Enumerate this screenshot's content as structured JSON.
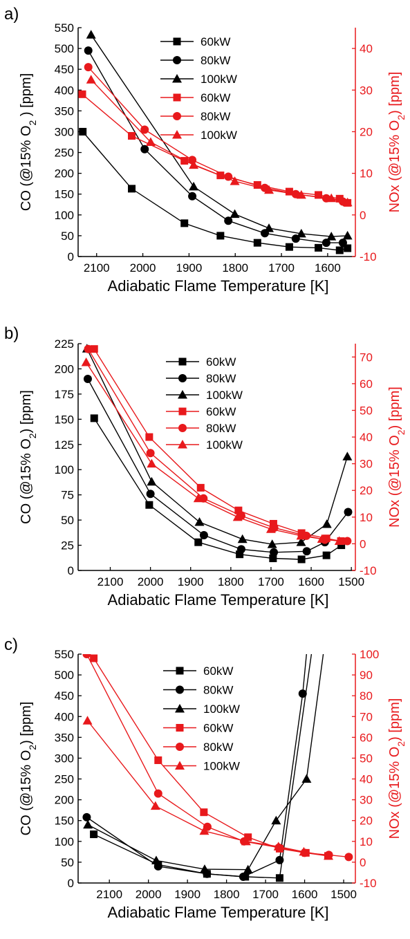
{
  "chart_data": [
    {
      "type": "line",
      "panel_label": "a)",
      "xlabel": "Adiabatic Flame Temperature [K]",
      "ylabel": "CO (@15% O2 ) [ppm]",
      "ylabel_right": "NOx (@15% O2) [ppm]",
      "xlim": [
        2140,
        1540
      ],
      "xticks": [
        2100,
        2000,
        1900,
        1800,
        1700,
        1600
      ],
      "ylim": [
        0,
        550
      ],
      "yticks": [
        0,
        50,
        100,
        150,
        200,
        250,
        300,
        350,
        400,
        450,
        500,
        550
      ],
      "ylim_right": [
        -10,
        45
      ],
      "yticks_right": [
        -10,
        0,
        10,
        20,
        30,
        40
      ],
      "legend_position": "top-center",
      "colors": {
        "co": "#000000",
        "nox": "#e8191c"
      },
      "series": [
        {
          "name": "60kW",
          "axis": "left",
          "marker": "square",
          "x": [
            2130,
            2024,
            1910,
            1832,
            1752,
            1683,
            1620,
            1574,
            1557
          ],
          "y": [
            300,
            163,
            80,
            50,
            33,
            23,
            21,
            15,
            20
          ]
        },
        {
          "name": "80kW",
          "axis": "left",
          "marker": "circle",
          "x": [
            2118,
            1996,
            1893,
            1815,
            1736,
            1669,
            1603,
            1567
          ],
          "y": [
            495,
            258,
            145,
            86,
            56,
            43,
            33,
            33
          ]
        },
        {
          "name": "100kW",
          "axis": "left",
          "marker": "triangle",
          "x": [
            2112,
            1890,
            1801,
            1727,
            1657,
            1592,
            1557
          ],
          "y": [
            533,
            168,
            102,
            68,
            55,
            48,
            50
          ]
        },
        {
          "name": "60kW",
          "axis": "right",
          "marker": "square",
          "x": [
            2131,
            2024,
            1910,
            1832,
            1752,
            1683,
            1620,
            1574,
            1557
          ],
          "y": [
            29,
            19,
            13,
            9.5,
            7.2,
            5.6,
            4.8,
            3.9,
            2.9
          ]
        },
        {
          "name": "80kW",
          "axis": "right",
          "marker": "circle",
          "x": [
            2118,
            1996,
            1893,
            1815,
            1736,
            1669,
            1603,
            1567
          ],
          "y": [
            35.5,
            20.5,
            13.2,
            9.2,
            6.5,
            5.0,
            4.0,
            3.2
          ]
        },
        {
          "name": "100kW",
          "axis": "right",
          "marker": "triangle",
          "x": [
            2112,
            1983,
            1890,
            1801,
            1727,
            1657,
            1592,
            1557
          ],
          "y": [
            32.5,
            17.5,
            12.0,
            8.1,
            6.0,
            4.8,
            4.0,
            3.0
          ]
        }
      ]
    },
    {
      "type": "line",
      "panel_label": "b)",
      "xlabel": "Adiabatic Flame Temperature [K]",
      "ylabel": "CO (@15% O2) [ppm]",
      "ylabel_right": "NOx (@15% O2) [ppm]",
      "xlim": [
        2180,
        1490
      ],
      "xticks": [
        2100,
        2000,
        1900,
        1800,
        1700,
        1600,
        1500
      ],
      "ylim": [
        0,
        225
      ],
      "yticks": [
        0,
        25,
        50,
        75,
        100,
        125,
        150,
        175,
        200,
        225
      ],
      "ylim_right": [
        -10,
        75
      ],
      "yticks_right": [
        -10,
        0,
        10,
        20,
        30,
        40,
        50,
        60,
        70
      ],
      "legend_position": "top-center",
      "colors": {
        "co": "#000000",
        "nox": "#e8191c"
      },
      "series": [
        {
          "name": "60kW",
          "axis": "left",
          "marker": "square",
          "x": [
            2140,
            2003,
            1881,
            1778,
            1695,
            1624,
            1562,
            1525
          ],
          "y": [
            151,
            65,
            28,
            16,
            12,
            11,
            15,
            25
          ]
        },
        {
          "name": "80kW",
          "axis": "left",
          "marker": "circle",
          "x": [
            2156,
            2000,
            1867,
            1774,
            1693,
            1611,
            1566,
            1508
          ],
          "y": [
            190,
            76,
            35,
            21,
            18,
            19,
            28,
            58
          ]
        },
        {
          "name": "100kW",
          "axis": "left",
          "marker": "triangle",
          "x": [
            2158,
            1997,
            1878,
            1771,
            1697,
            1625,
            1561,
            1510
          ],
          "y": [
            220,
            88,
            48,
            31,
            26,
            28,
            46,
            113
          ]
        },
        {
          "name": "60kW",
          "axis": "right",
          "marker": "square",
          "x": [
            2140,
            2003,
            1875,
            1781,
            1694,
            1624,
            1562,
            1526
          ],
          "y": [
            73,
            40,
            21,
            12.5,
            7.5,
            4.0,
            2.0,
            1.0
          ]
        },
        {
          "name": "80kW",
          "axis": "right",
          "marker": "circle",
          "x": [
            2155,
            2000,
            1868,
            1774,
            1692,
            1612,
            1566,
            1510
          ],
          "y": [
            73,
            34,
            17,
            10.5,
            6.0,
            3.0,
            1.5,
            1.0
          ]
        },
        {
          "name": "100kW",
          "axis": "right",
          "marker": "triangle",
          "x": [
            2160,
            1997,
            1881,
            1783,
            1700,
            1625,
            1573,
            1530
          ],
          "y": [
            68,
            30,
            17,
            10.0,
            5.5,
            3.0,
            1.8,
            1.0
          ]
        }
      ]
    },
    {
      "type": "line",
      "panel_label": "c)",
      "xlabel": "Adiabatic Flame Temperature [K]",
      "ylabel": "CO (@15% O2) [ppm]",
      "ylabel_right": "NOx (@15% O2) [ppm]",
      "xlim": [
        2180,
        1470
      ],
      "xticks": [
        2100,
        2000,
        1900,
        1800,
        1700,
        1600,
        1500
      ],
      "ylim": [
        0,
        550
      ],
      "yticks": [
        0,
        50,
        100,
        150,
        200,
        250,
        300,
        350,
        400,
        450,
        500,
        550
      ],
      "ylim_right": [
        -10,
        100
      ],
      "yticks_right": [
        -10,
        0,
        10,
        20,
        30,
        40,
        50,
        60,
        70,
        80,
        90,
        100
      ],
      "legend_position": "top-center",
      "colors": {
        "co": "#000000",
        "nox": "#e8191c"
      },
      "series": [
        {
          "name": "60kW",
          "axis": "left",
          "marker": "square",
          "x": [
            2140,
            1975,
            1850,
            1752,
            1664,
            1575
          ],
          "y": [
            117,
            44,
            22,
            15,
            12,
            600
          ]
        },
        {
          "name": "80kW",
          "axis": "left",
          "marker": "circle",
          "x": [
            2158,
            1975,
            1850,
            1757,
            1664,
            1605,
            1590
          ],
          "y": [
            158,
            40,
            22,
            15,
            55,
            455,
            600
          ]
        },
        {
          "name": "100kW",
          "axis": "left",
          "marker": "triangle",
          "x": [
            2155,
            1980,
            1856,
            1745,
            1673,
            1595,
            1545
          ],
          "y": [
            140,
            54,
            33,
            32,
            150,
            250,
            600
          ]
        },
        {
          "name": "60kW",
          "axis": "right",
          "marker": "square",
          "x": [
            2140,
            1975,
            1858,
            1745,
            1664,
            1597,
            1540
          ],
          "y": [
            98,
            49,
            24,
            12,
            6.5,
            4.5,
            3.0
          ]
        },
        {
          "name": "80kW",
          "axis": "right",
          "marker": "circle",
          "x": [
            2158,
            1975,
            1849,
            1755,
            1666,
            1600,
            1538,
            1487
          ],
          "y": [
            100,
            33,
            17,
            10,
            7,
            4.5,
            3.5,
            2.5
          ]
        },
        {
          "name": "100kW",
          "axis": "right",
          "marker": "triangle",
          "x": [
            2156,
            1982,
            1857,
            1750,
            1667,
            1602,
            1539
          ],
          "y": [
            68,
            27,
            15,
            10,
            7.5,
            5.0,
            3.0
          ]
        }
      ]
    }
  ]
}
